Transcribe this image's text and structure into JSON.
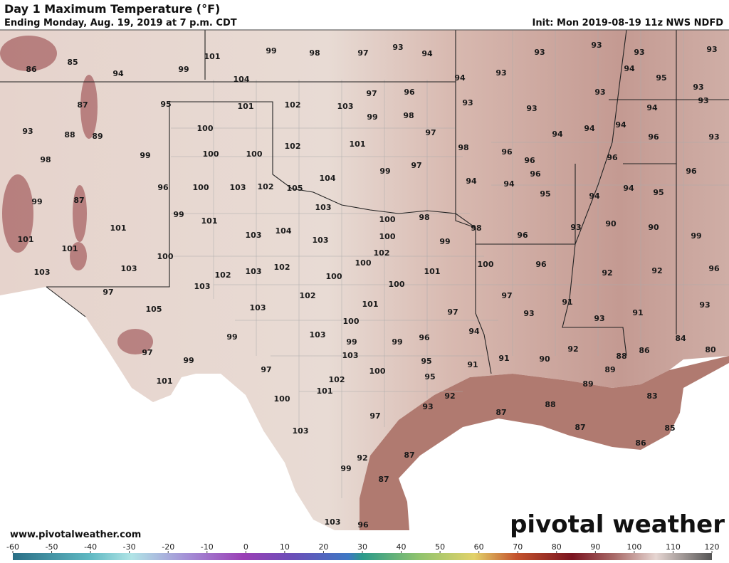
{
  "title": "Day 1 Maximum Temperature (°F)",
  "subtitle": "Ending Monday, Aug. 19, 2019 at 7 p.m. CDT",
  "init": "Init: Mon 2019-08-19 11z NWS NDFD",
  "website": "www.pivotalweather.com",
  "logo": "pivotal weather",
  "colorbar": {
    "range": [
      -60,
      120
    ],
    "ticks": [
      -60,
      -50,
      -40,
      -30,
      -20,
      -10,
      0,
      10,
      20,
      30,
      40,
      50,
      60,
      70,
      80,
      90,
      100,
      110,
      120
    ]
  },
  "temperature_labels": [
    86,
    85,
    94,
    99,
    101,
    99,
    98,
    97,
    93,
    94,
    93,
    93,
    93,
    93,
    104,
    94,
    93,
    94,
    95,
    93,
    87,
    95,
    101,
    102,
    103,
    97,
    96,
    93,
    93,
    93,
    99,
    98,
    93,
    94,
    93,
    88,
    89,
    100,
    97,
    101,
    94,
    94,
    94,
    96,
    93,
    102,
    98,
    98,
    99,
    100,
    100,
    96,
    96,
    96,
    97,
    99,
    104,
    96,
    96,
    94,
    94,
    102,
    103,
    100,
    105,
    94,
    95,
    96,
    99,
    87,
    95,
    94,
    103,
    99,
    101,
    100,
    98,
    98,
    101,
    104,
    103,
    103,
    100,
    99,
    90,
    90,
    93,
    96,
    99,
    101,
    101,
    102,
    100,
    100,
    100,
    96,
    103,
    102,
    103,
    102,
    101,
    92,
    92,
    96,
    103,
    100,
    103,
    100,
    97,
    97,
    102,
    101,
    91,
    93,
    105,
    103,
    97,
    93,
    93,
    91,
    100,
    94,
    99,
    103,
    99,
    99,
    96,
    84,
    97,
    99,
    103,
    92,
    86,
    80,
    95,
    88,
    91,
    90,
    91,
    89,
    97,
    100,
    95,
    102,
    101,
    89,
    101,
    100,
    92,
    83,
    93,
    87,
    88,
    97,
    103,
    87,
    85,
    86,
    87,
    92,
    99,
    87,
    103,
    96
  ]
}
